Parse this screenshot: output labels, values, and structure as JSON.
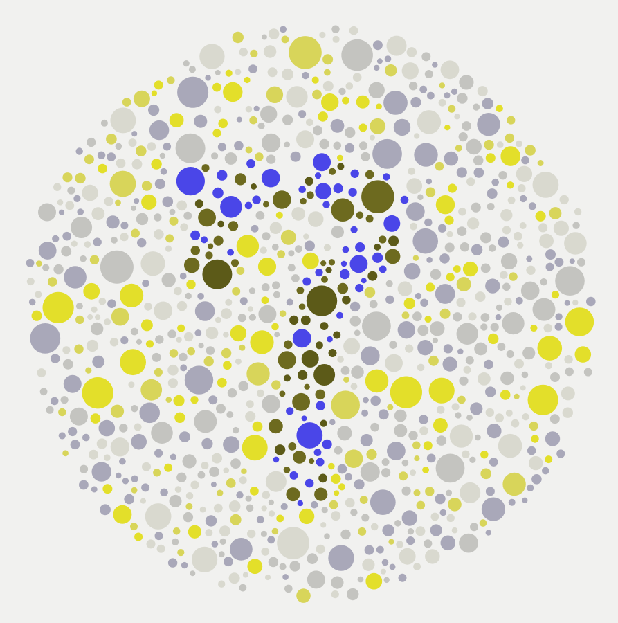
{
  "plate": {
    "digit": "7",
    "colors": {
      "background": "#f1f1ef",
      "figure_olive": "#6d6a1f",
      "figure_olive_dark": "#5c5a18",
      "figure_blue": "#4a46e8",
      "bg_yellow": "#e3df2a",
      "bg_yellow_soft": "#d8d55a",
      "bg_lavender": "#a9a8b9",
      "bg_gray": "#c4c4c0",
      "bg_pale": "#d9d9cf"
    }
  }
}
